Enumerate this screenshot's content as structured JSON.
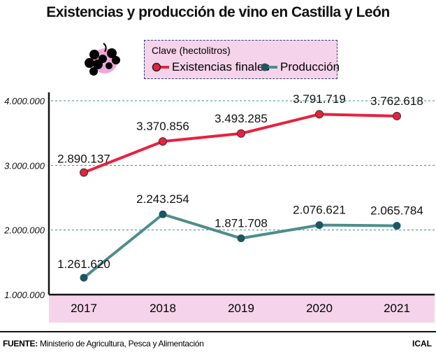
{
  "title": "Existencias y producción de vino en Castilla y León",
  "legend": {
    "title": "Clave (hectolitros)",
    "items": [
      "Existencias finales",
      "Producción"
    ]
  },
  "colors": {
    "existencias": "#e8213e",
    "produccion": "#4e8d8c",
    "produccion_marker": "#1d5563",
    "axis_band": "#f5d3ea",
    "grid": "#3a8c8c"
  },
  "icon": "grapes-icon",
  "chart_data": {
    "type": "line",
    "title": "Existencias y producción de vino en Castilla y León",
    "categories": [
      "2017",
      "2018",
      "2019",
      "2020",
      "2021"
    ],
    "series": [
      {
        "name": "Existencias finales",
        "values": [
          2890137,
          3370856,
          3493285,
          3791719,
          3762618
        ],
        "labels": [
          "2.890.137",
          "3.370.856",
          "3.493.285",
          "3.791.719",
          "3.762.618"
        ]
      },
      {
        "name": "Producción",
        "values": [
          1261620,
          2243254,
          1871708,
          2076621,
          2065784
        ],
        "labels": [
          "1.261.620",
          "2.243.254",
          "1.871.708",
          "2.076.621",
          "2.065.784"
        ]
      }
    ],
    "yticks": [
      1000000,
      2000000,
      3000000,
      4000000
    ],
    "ytick_labels": [
      "1.000.000",
      "2.000.000",
      "3.000.000",
      "4.000.000"
    ],
    "ylim": [
      1000000,
      4000000
    ],
    "grid": true,
    "legend_position": "top"
  },
  "footer": {
    "source_label": "FUENTE:",
    "source_text": " Ministerio de Agricultura, Pesca y Alimentación",
    "brand": "ICAL"
  }
}
